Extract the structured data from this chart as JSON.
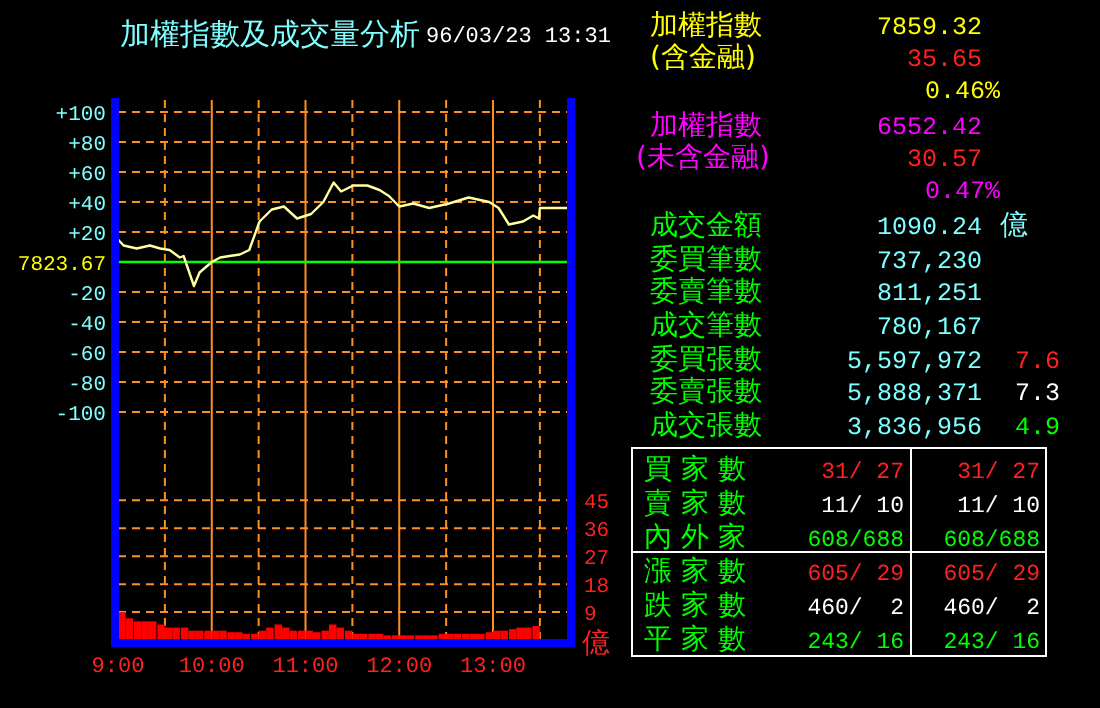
{
  "chart_data": [
    {
      "type": "line",
      "title": "加權指數及成交量分析",
      "subtitle": "96/03/23 13:31",
      "y2label": "億",
      "xlim": [
        9,
        13.8
      ],
      "xticks": [
        {
          "value": 9,
          "label": "9:00"
        },
        {
          "value": 9.5,
          "label": null
        },
        {
          "value": 10,
          "label": "10:00"
        },
        {
          "value": 10.5,
          "label": null
        },
        {
          "value": 11,
          "label": "11:00"
        },
        {
          "value": 11.5,
          "label": null
        },
        {
          "value": 12,
          "label": "12:00"
        },
        {
          "value": 12.5,
          "label": null
        },
        {
          "value": 13,
          "label": "13:00"
        },
        {
          "value": 13.5,
          "label": null
        }
      ],
      "ylim": [
        -252,
        108
      ],
      "yticks": [
        {
          "value": 100,
          "label": "+100"
        },
        {
          "value": 80,
          "label": "+80"
        },
        {
          "value": 60,
          "label": "+60"
        },
        {
          "value": 40,
          "label": "+40"
        },
        {
          "value": 20,
          "label": "+20"
        },
        -20,
        -40,
        -60,
        -80,
        -100
      ],
      "y2lim": [
        0,
        174
      ],
      "y2ticks": [
        9,
        18,
        27,
        36,
        45
      ],
      "grid": true,
      "ref_lines": [
        {
          "axis": "y",
          "value": 0,
          "color": "#00ff00"
        }
      ],
      "annotations": [
        "7823.67"
      ],
      "series": [
        {
          "type": "line",
          "color": "#ffffa0",
          "x": [
            9,
            9.06,
            9.2,
            9.34,
            9.45,
            9.55,
            9.66,
            9.7,
            9.81,
            9.87,
            10,
            10.09,
            10.19,
            10.3,
            10.4,
            10.51,
            10.64,
            10.77,
            10.91,
            11.06,
            11.19,
            11.3,
            11.38,
            11.51,
            11.66,
            11.79,
            11.89,
            12,
            12.15,
            12.32,
            12.53,
            12.74,
            12.96,
            13.06,
            13.17,
            13.32,
            13.43,
            13.49,
            13.5,
            13.8
          ],
          "values": [
            15,
            11,
            9,
            11,
            9,
            8,
            3,
            4,
            -16,
            -7,
            0,
            3,
            4,
            5,
            8,
            27,
            35,
            37,
            29,
            32,
            40,
            53,
            47,
            51,
            51,
            48,
            44,
            37,
            39,
            36,
            39,
            43,
            40,
            36,
            25,
            27,
            31,
            29,
            36,
            36
          ]
        },
        {
          "type": "bar",
          "axis": "y2",
          "color": "#ff0000",
          "x": [
            9,
            9.08,
            9.17,
            9.25,
            9.33,
            9.42,
            9.5,
            9.58,
            9.67,
            9.75,
            9.83,
            9.92,
            10,
            10.08,
            10.17,
            10.25,
            10.33,
            10.42,
            10.5,
            10.58,
            10.67,
            10.75,
            10.83,
            10.92,
            11,
            11.08,
            11.17,
            11.25,
            11.33,
            11.42,
            11.5,
            11.58,
            11.67,
            11.75,
            11.83,
            11.92,
            12,
            12.08,
            12.17,
            12.25,
            12.33,
            12.42,
            12.5,
            12.58,
            12.67,
            12.75,
            12.83,
            12.92,
            13,
            13.08,
            13.17,
            13.25,
            13.33,
            13.42
          ],
          "values": [
            9,
            7,
            6,
            6,
            6,
            5,
            4,
            4,
            4,
            3,
            3,
            3,
            3,
            3,
            2.5,
            2.5,
            2,
            2,
            3,
            4,
            5,
            4,
            3,
            3,
            3,
            2.5,
            3,
            5,
            4,
            3,
            2,
            2,
            2,
            2,
            1.5,
            1.5,
            1.5,
            1.5,
            1.5,
            1.5,
            1.5,
            2,
            2,
            2,
            2,
            2,
            2,
            2.5,
            3,
            3,
            3.5,
            4,
            4,
            4.5
          ]
        }
      ]
    },
    {
      "type": "other",
      "annotations": [
        "加權指數",
        "7859.32",
        "(含金融)",
        "35.65",
        "0.46%",
        "加權指數",
        "6552.42",
        "(未含金融)",
        "30.57",
        "0.47%",
        "成交金額",
        "1090.24",
        "億",
        "委買筆數",
        "737,230",
        "委賣筆數",
        "811,251",
        "成交筆數",
        "780,167",
        "委買張數",
        "5,597,972",
        "7.6",
        "委賣張數",
        "5,888,371",
        "7.3",
        "成交張數",
        "3,836,956",
        "4.9",
        "買 家 數",
        "31/ 27",
        "31/ 27",
        "賣 家 數",
        "11/ 10",
        "11/ 10",
        "內 外 家",
        "608/688",
        "608/688",
        "漲 家 數",
        "605/ 29",
        "605/ 29",
        "跌 家 數",
        "460/  2",
        "460/  2",
        "平 家 數",
        "243/ 16",
        "243/ 16"
      ]
    }
  ]
}
